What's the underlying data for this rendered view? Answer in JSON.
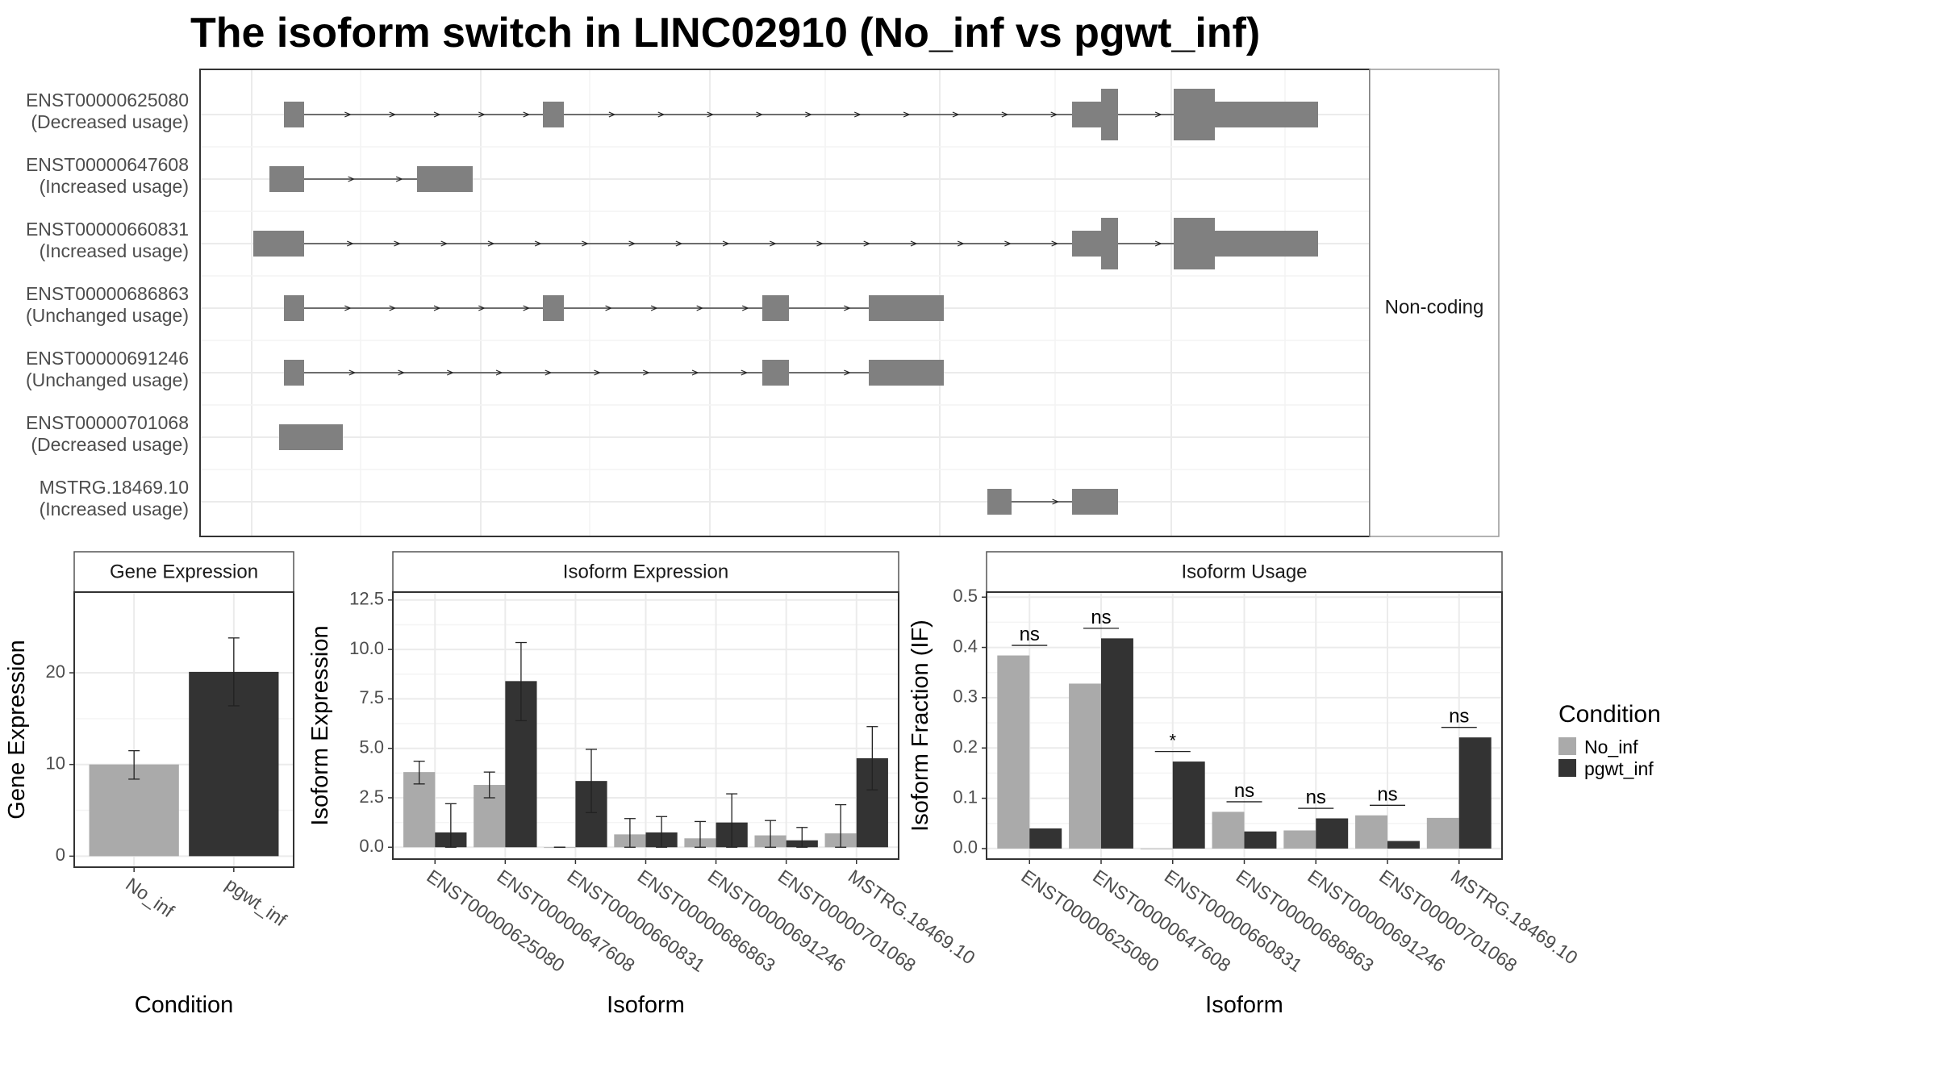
{
  "title": "The isoform switch in LINC02910 (No_inf vs pgwt_inf)",
  "colors": {
    "no_inf": "#AAAAAA",
    "pgwt_inf": "#333333",
    "exon": "#808080",
    "grid_major": "#EBEBEB",
    "grid_minor": "#F4F4F4",
    "panel_border": "#333333",
    "strip_border": "#555555",
    "text": "#333333",
    "axis_text": "#4D4D4D"
  },
  "structure": {
    "strip_label": "Non-coding",
    "isoforms": [
      {
        "id": "ENST00000625080",
        "usage": "(Decreased usage)"
      },
      {
        "id": "ENST00000647608",
        "usage": "(Increased usage)"
      },
      {
        "id": "ENST00000660831",
        "usage": "(Increased usage)"
      },
      {
        "id": "ENST00000686863",
        "usage": "(Unchanged usage)"
      },
      {
        "id": "ENST00000691246",
        "usage": "(Unchanged usage)"
      },
      {
        "id": "ENST00000701068",
        "usage": "(Decreased usage)"
      },
      {
        "id": "MSTRG.18469.10",
        "usage": "(Increased usage)"
      }
    ]
  },
  "chart_data": [
    {
      "type": "bar",
      "title": "Gene Expression",
      "xlabel": "Condition",
      "ylabel": "Gene Expression",
      "categories": [
        "No_inf",
        "pgwt_inf"
      ],
      "values": [
        10.0,
        20.1
      ],
      "error_low": [
        8.4,
        16.4
      ],
      "error_high": [
        11.5,
        23.8
      ],
      "ylim": [
        -1.2,
        28.8
      ],
      "yticks": [
        0,
        10,
        20
      ],
      "grid": true
    },
    {
      "type": "bar",
      "title": "Isoform Expression",
      "xlabel": "Isoform",
      "ylabel": "Isoform Expression",
      "categories": [
        "ENST00000625080",
        "ENST00000647608",
        "ENST00000660831",
        "ENST00000686863",
        "ENST00000691246",
        "ENST00000701068",
        "MSTRG.18469.10"
      ],
      "series": [
        {
          "name": "No_inf",
          "values": [
            3.8,
            3.15,
            0.0,
            0.65,
            0.45,
            0.6,
            0.7
          ],
          "error_low": [
            3.2,
            2.5,
            0.0,
            0.0,
            0.0,
            0.0,
            0.0
          ],
          "error_high": [
            4.35,
            3.8,
            0.0,
            1.45,
            1.3,
            1.35,
            2.15
          ]
        },
        {
          "name": "pgwt_inf",
          "values": [
            0.75,
            8.4,
            3.35,
            0.75,
            1.25,
            0.35,
            4.5
          ],
          "error_low": [
            0.0,
            6.4,
            1.75,
            0.0,
            0.0,
            0.0,
            2.9
          ],
          "error_high": [
            2.2,
            10.35,
            4.95,
            1.55,
            2.7,
            1.0,
            6.1
          ]
        }
      ],
      "ylim": [
        -0.6,
        12.9
      ],
      "yticks": [
        0.0,
        2.5,
        5.0,
        7.5,
        10.0,
        12.5
      ],
      "grid": true
    },
    {
      "type": "bar",
      "title": "Isoform Usage",
      "xlabel": "Isoform",
      "ylabel": "Isoform Fraction (IF)",
      "categories": [
        "ENST00000625080",
        "ENST00000647608",
        "ENST00000660831",
        "ENST00000686863",
        "ENST00000691246",
        "ENST00000701068",
        "MSTRG.18469.10"
      ],
      "series": [
        {
          "name": "No_inf",
          "values": [
            0.384,
            0.328,
            0.0,
            0.073,
            0.036,
            0.066,
            0.061
          ]
        },
        {
          "name": "pgwt_inf",
          "values": [
            0.04,
            0.418,
            0.173,
            0.034,
            0.06,
            0.015,
            0.221
          ]
        }
      ],
      "significance": [
        {
          "label": "ns",
          "level": 0.404
        },
        {
          "label": "ns",
          "level": 0.438
        },
        {
          "label": "*",
          "level": 0.193
        },
        {
          "label": "ns",
          "level": 0.093
        },
        {
          "label": "ns",
          "level": 0.08
        },
        {
          "label": "ns",
          "level": 0.086
        },
        {
          "label": "ns",
          "level": 0.241
        }
      ],
      "ylim": [
        -0.021,
        0.51
      ],
      "yticks": [
        0.0,
        0.1,
        0.2,
        0.3,
        0.4,
        0.5
      ],
      "grid": true
    }
  ],
  "legend": {
    "title": "Condition",
    "items": [
      {
        "label": "No_inf",
        "color": "#AAAAAA"
      },
      {
        "label": "pgwt_inf",
        "color": "#333333"
      }
    ]
  }
}
